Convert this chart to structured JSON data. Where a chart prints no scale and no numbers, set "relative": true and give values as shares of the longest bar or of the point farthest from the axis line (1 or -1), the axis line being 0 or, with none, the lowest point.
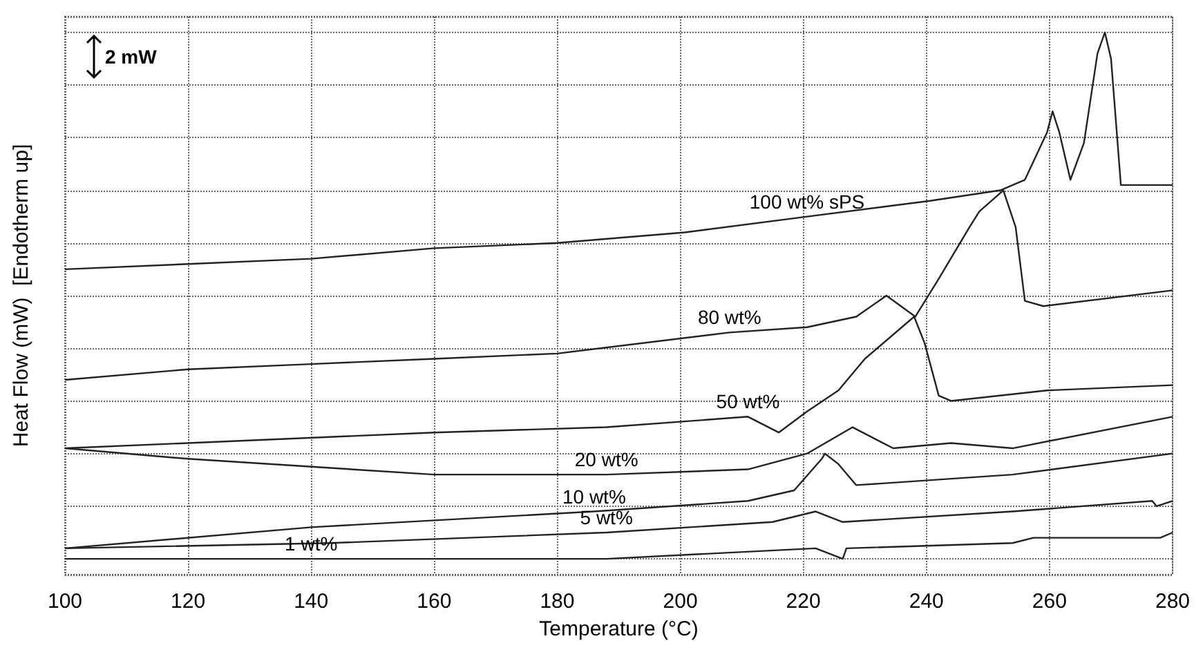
{
  "chart_data": {
    "type": "line",
    "xlabel": "Temperature (°C)",
    "ylabel": "Heat Flow (mW)  [Endotherm up]",
    "relative": true,
    "xlim": [
      100,
      280
    ],
    "xticks": [
      100,
      120,
      140,
      160,
      180,
      200,
      220,
      240,
      260,
      280
    ],
    "grid": true,
    "legend": false,
    "marker": "none",
    "line_style": "solid",
    "annotations": [
      "2 mW"
    ],
    "series": [
      {
        "name": "100 wt% sPS",
        "color": "#222222",
        "x": [
          100,
          120,
          140,
          160,
          180,
          200.7,
          220.6,
          240.6,
          252,
          256,
          259.6,
          260.5,
          261.6,
          263.4,
          265.6,
          267.8,
          269,
          270,
          271.6,
          278,
          280
        ],
        "values": [
          0.55,
          0.56,
          0.57,
          0.59,
          0.6,
          0.62,
          0.65,
          0.68,
          0.7,
          0.72,
          0.81,
          0.85,
          0.81,
          0.72,
          0.79,
          0.96,
          1,
          0.95,
          0.71,
          0.71,
          0.71
        ]
      },
      {
        "name": "80 wt%",
        "color": "#222222",
        "x": [
          100,
          120,
          140,
          160,
          180,
          208,
          220.6,
          228.6,
          233.5,
          238.2,
          241.9,
          247,
          248.6,
          252.5,
          254.5,
          256,
          259,
          280
        ],
        "values": [
          0.34,
          0.36,
          0.37,
          0.38,
          0.39,
          0.43,
          0.44,
          0.46,
          0.5,
          0.46,
          0.53,
          0.63,
          0.66,
          0.7,
          0.63,
          0.49,
          0.48,
          0.51
        ]
      },
      {
        "name": "50 wt%",
        "color": "#222222",
        "x": [
          100,
          120,
          160,
          188,
          211,
          216,
          220.6,
          225.7,
          230,
          238,
          239.7,
          242,
          244,
          259.6,
          280
        ],
        "values": [
          0.21,
          0.22,
          0.24,
          0.25,
          0.27,
          0.24,
          0.28,
          0.32,
          0.38,
          0.46,
          0.41,
          0.31,
          0.3,
          0.32,
          0.33
        ]
      },
      {
        "name": "20 wt%",
        "color": "#222222",
        "x": [
          100,
          120,
          160,
          188,
          211,
          220.6,
          228,
          234.6,
          244,
          254,
          280
        ],
        "values": [
          0.21,
          0.19,
          0.16,
          0.16,
          0.17,
          0.2,
          0.25,
          0.21,
          0.22,
          0.21,
          0.27
        ]
      },
      {
        "name": "10 wt%",
        "color": "#222222",
        "x": [
          100,
          140,
          186,
          211,
          218.5,
          223,
          223.5,
          225.7,
          228.6,
          254,
          280
        ],
        "values": [
          0.02,
          0.06,
          0.09,
          0.11,
          0.13,
          0.19,
          0.2,
          0.18,
          0.14,
          0.16,
          0.2
        ]
      },
      {
        "name": "5 wt%",
        "color": "#222222",
        "x": [
          100,
          143,
          188,
          215,
          222,
          226.4,
          254,
          276.7,
          277.4,
          280
        ],
        "values": [
          0.02,
          0.03,
          0.05,
          0.07,
          0.09,
          0.07,
          0.09,
          0.11,
          0.1,
          0.11
        ]
      },
      {
        "name": "1 wt%",
        "color": "#222222",
        "x": [
          100,
          140,
          188,
          222,
          226.4,
          227,
          254,
          257.4,
          259.6,
          278,
          280
        ],
        "values": [
          0,
          0,
          0,
          0.02,
          0,
          0.02,
          0.03,
          0.04,
          0.04,
          0.04,
          0.05
        ]
      }
    ]
  }
}
